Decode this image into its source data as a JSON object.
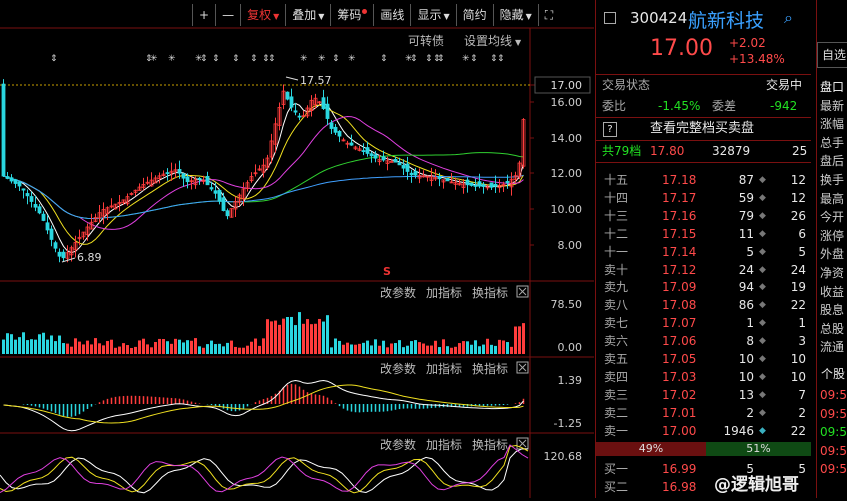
{
  "toolbar": {
    "plus": "+",
    "minus": "—",
    "fuquan": "复权",
    "diejia": "叠加",
    "chouma": "筹码",
    "huaxian": "画线",
    "xianshi": "显示",
    "jianyue": "简约",
    "yincang": "隐藏",
    "expand": "⛶"
  },
  "main_chart": {
    "convertible_label": "可转债",
    "ma_setting": "设置均线",
    "high_label": "17.57",
    "low_label": "6.89",
    "price_axis": [
      "17.00",
      "16.00",
      "14.00",
      "12.00",
      "10.00",
      "8.00"
    ],
    "s_marker": "S"
  },
  "volume_panel": {
    "params": "改参数",
    "add_indicator": "加指标",
    "switch_indicator": "换指标",
    "axis": [
      "78.50",
      "0.00"
    ]
  },
  "macd_panel": {
    "params": "改参数",
    "add_indicator": "加指标",
    "switch_indicator": "换指标",
    "axis": [
      "1.39",
      "-1.25"
    ]
  },
  "kdj_panel": {
    "params": "改参数",
    "add_indicator": "加指标",
    "switch_indicator": "换指标",
    "axis": [
      "120.68"
    ]
  },
  "stock": {
    "code": "300424",
    "name": "航新科技",
    "price": "17.00",
    "change": "+2.02",
    "change_pct": "+13.48%",
    "self_select": "自选"
  },
  "status": {
    "label": "交易状态",
    "value": "交易中",
    "weibi_label": "委比",
    "weibi_value": "-1.45%",
    "weicha_label": "委差",
    "weicha_value": "-942",
    "full_book_icon": "?",
    "full_book": "查看完整档买卖盘",
    "total_levels": "共79档",
    "top_price": "17.80",
    "top_vol": "32879",
    "top_orders": "25"
  },
  "asks": [
    {
      "label": "十五",
      "price": "17.18",
      "vol": "87",
      "orders": "12"
    },
    {
      "label": "十四",
      "price": "17.17",
      "vol": "59",
      "orders": "12"
    },
    {
      "label": "十三",
      "price": "17.16",
      "vol": "79",
      "orders": "26"
    },
    {
      "label": "十二",
      "price": "17.15",
      "vol": "11",
      "orders": "6"
    },
    {
      "label": "十一",
      "price": "17.14",
      "vol": "5",
      "orders": "5"
    },
    {
      "label": "卖十",
      "price": "17.12",
      "vol": "24",
      "orders": "24"
    },
    {
      "label": "卖九",
      "price": "17.09",
      "vol": "94",
      "orders": "19"
    },
    {
      "label": "卖八",
      "price": "17.08",
      "vol": "86",
      "orders": "22"
    },
    {
      "label": "卖七",
      "price": "17.07",
      "vol": "1",
      "orders": "1"
    },
    {
      "label": "卖六",
      "price": "17.06",
      "vol": "8",
      "orders": "3"
    },
    {
      "label": "卖五",
      "price": "17.05",
      "vol": "10",
      "orders": "10"
    },
    {
      "label": "卖四",
      "price": "17.03",
      "vol": "10",
      "orders": "10"
    },
    {
      "label": "卖三",
      "price": "17.02",
      "vol": "13",
      "orders": "7"
    },
    {
      "label": "卖二",
      "price": "17.01",
      "vol": "2",
      "orders": "2"
    },
    {
      "label": "卖一",
      "price": "17.00",
      "vol": "1946",
      "orders": "22"
    }
  ],
  "ratio": {
    "sell": "49%",
    "buy": "51%"
  },
  "bids": [
    {
      "label": "买一",
      "price": "16.99",
      "vol": "5",
      "orders": "5"
    },
    {
      "label": "买二",
      "price": "16.98",
      "vol": "",
      "orders": ""
    }
  ],
  "side_tabs": [
    "盘口",
    "最新",
    "涨幅",
    "总手",
    "盘后",
    "换手",
    "最高",
    "今开",
    "涨停",
    "外盘",
    "净资",
    "收益",
    "股息",
    "总股",
    "流通"
  ],
  "side_detail": "个股",
  "side_times": [
    "09:5",
    "09:5",
    "09:5",
    "09:5",
    "09:5"
  ],
  "watermark": "@逻辑旭哥",
  "colors": {
    "up": "#ff4a4a",
    "down": "#22e022",
    "accent": "#7a1010"
  }
}
